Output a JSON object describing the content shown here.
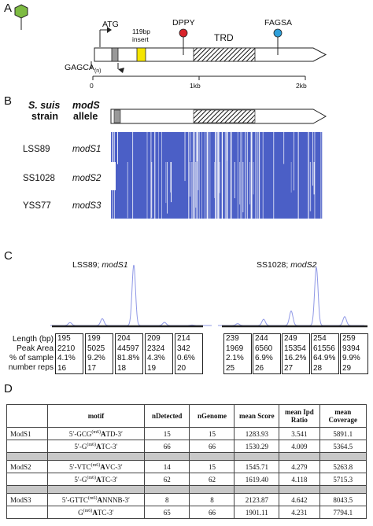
{
  "panel_letters": {
    "a": "A",
    "b": "B",
    "c": "C",
    "d": "D"
  },
  "panel_a": {
    "atg": "ATG",
    "insert_top": "119bp",
    "insert_bottom": "insert",
    "dppy": "DPPY",
    "fagsa": "FAGSA",
    "trd": "TRD",
    "gagca": "GAGCA",
    "gagca_sub": "(n)",
    "scale": [
      "0",
      "1kb",
      "2kb"
    ],
    "colors": {
      "hexagon": "#7dbb42",
      "dppy_dot": "#d8232a",
      "fagsa_dot": "#2e9fd9",
      "insert_box": "#f5e500",
      "grey_box": "#999999"
    }
  },
  "panel_b": {
    "header_species": "S. suis",
    "header_strain": "strain",
    "header_mods": "modS",
    "header_allele": "allele",
    "rows": [
      {
        "strain": "LSS89",
        "allele": "modS1"
      },
      {
        "strain": "SS1028",
        "allele": "modS2"
      },
      {
        "strain": "YSS77",
        "allele": "modS3"
      }
    ],
    "alignment_color": "#4b5fc6"
  },
  "panel_c": {
    "left_title_strain": "LSS89; ",
    "left_title_allele": "modS1",
    "right_title_strain": "SS1028; ",
    "right_title_allele": "modS2",
    "row_labels": [
      "Length (bp)",
      "Peak Area",
      "% of sample",
      "number reps"
    ],
    "left_peaks": [
      {
        "length": "195",
        "area": "2210",
        "pct": "4.1%",
        "reps": "16"
      },
      {
        "length": "199",
        "area": "5025",
        "pct": "9.2%",
        "reps": "17"
      },
      {
        "length": "204",
        "area": "44597",
        "pct": "81.8%",
        "reps": "18"
      },
      {
        "length": "209",
        "area": "2324",
        "pct": "4.3%",
        "reps": "19"
      },
      {
        "length": "214",
        "area": "342",
        "pct": "0.6%",
        "reps": "20"
      }
    ],
    "right_peaks": [
      {
        "length": "239",
        "area": "1969",
        "pct": "2.1%",
        "reps": "25"
      },
      {
        "length": "244",
        "area": "6560",
        "pct": "6.9%",
        "reps": "26"
      },
      {
        "length": "249",
        "area": "15354",
        "pct": "16.2%",
        "reps": "27"
      },
      {
        "length": "254",
        "area": "61556",
        "pct": "64.9%",
        "reps": "28"
      },
      {
        "length": "259",
        "area": "9394",
        "pct": "9.9%",
        "reps": "29"
      }
    ],
    "trace_color": "#8f98e6"
  },
  "panel_d": {
    "headers": [
      "",
      "motif",
      "nDetected",
      "nGenome",
      "mean Score",
      "mean Ipd Ratio",
      "mean Coverage"
    ],
    "groups": [
      {
        "name": "ModS1",
        "rows": [
          {
            "motif_pre": "5′-GCG",
            "motif_sup": "(m6)",
            "motif_bold": "A",
            "motif_post": "TD-3′",
            "ndetected": "15",
            "ngenome": "15",
            "score": "1283.93",
            "ipd": "3.541",
            "coverage": "5891.1"
          },
          {
            "motif_pre": "5′-G",
            "motif_sup": "(m6)",
            "motif_bold": "A",
            "motif_post": "TC-3′",
            "ndetected": "66",
            "ngenome": "66",
            "score": "1530.29",
            "ipd": "4.009",
            "coverage": "5364.5"
          }
        ]
      },
      {
        "name": "ModS2",
        "rows": [
          {
            "motif_pre": "5′-VTC",
            "motif_sup": "(m6)",
            "motif_bold": "A",
            "motif_post": "VC-3′",
            "ndetected": "14",
            "ngenome": "15",
            "score": "1545.71",
            "ipd": "4.279",
            "coverage": "5263.8"
          },
          {
            "motif_pre": "5′-G",
            "motif_sup": "(m6)",
            "motif_bold": "A",
            "motif_post": "TC-3′",
            "ndetected": "62",
            "ngenome": "62",
            "score": "1619.40",
            "ipd": "4.118",
            "coverage": "5715.3"
          }
        ]
      },
      {
        "name": "ModS3",
        "rows": [
          {
            "motif_pre": "5′-GTTC",
            "motif_sup": "(m6)",
            "motif_bold": "A",
            "motif_post": "NNNB-3′",
            "ndetected": "8",
            "ngenome": "8",
            "score": "2123.87",
            "ipd": "4.642",
            "coverage": "8043.5"
          },
          {
            "motif_pre": "G",
            "motif_sup": "(m6)",
            "motif_bold": "A",
            "motif_post": "TC-3′",
            "ndetected": "65",
            "ngenome": "66",
            "score": "1901.11",
            "ipd": "4.231",
            "coverage": "7794.1"
          }
        ]
      }
    ]
  }
}
